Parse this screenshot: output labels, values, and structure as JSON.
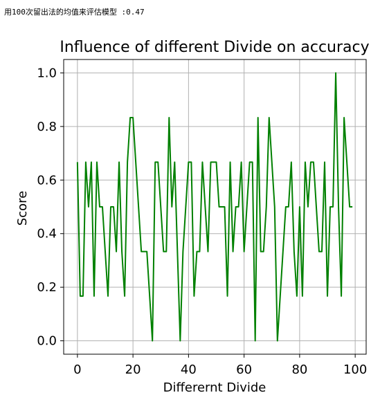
{
  "console": {
    "output_text": "用100次留出法的均值来评估模型 :0.47"
  },
  "colors": {
    "line": "#008000",
    "grid": "#b0b0b0",
    "axis": "#000000"
  },
  "chart_data": {
    "type": "line",
    "title": "Influence of different Divide on accuracy",
    "xlabel": "Differernt  Divide",
    "ylabel": "Score",
    "xlim": [
      -4.95,
      103.95
    ],
    "ylim": [
      -0.05,
      1.05
    ],
    "xticks": [
      0,
      20,
      40,
      60,
      80,
      100
    ],
    "xtick_labels": [
      "0",
      "20",
      "40",
      "60",
      "80",
      "100"
    ],
    "yticks": [
      0.0,
      0.2,
      0.4,
      0.6,
      0.8,
      1.0
    ],
    "ytick_labels": [
      "0.0",
      "0.2",
      "0.4",
      "0.6",
      "0.8",
      "1.0"
    ],
    "grid": true,
    "series": [
      {
        "color": "#008000",
        "x": [
          0,
          1,
          2,
          3,
          4,
          5,
          6,
          7,
          8,
          9,
          10,
          11,
          12,
          13,
          14,
          15,
          16,
          17,
          18,
          19,
          20,
          21,
          22,
          23,
          24,
          25,
          26,
          27,
          28,
          29,
          30,
          31,
          32,
          33,
          34,
          35,
          36,
          37,
          38,
          39,
          40,
          41,
          42,
          43,
          44,
          45,
          46,
          47,
          48,
          49,
          50,
          51,
          52,
          53,
          54,
          55,
          56,
          57,
          58,
          59,
          60,
          61,
          62,
          63,
          64,
          65,
          66,
          67,
          68,
          69,
          70,
          71,
          72,
          73,
          74,
          75,
          76,
          77,
          78,
          79,
          80,
          81,
          82,
          83,
          84,
          85,
          86,
          87,
          88,
          89,
          90,
          91,
          92,
          93,
          94,
          95,
          96,
          97,
          98,
          99
        ],
        "y": [
          0.667,
          0.167,
          0.167,
          0.667,
          0.5,
          0.667,
          0.167,
          0.667,
          0.5,
          0.5,
          0.333,
          0.167,
          0.5,
          0.5,
          0.333,
          0.667,
          0.333,
          0.167,
          0.667,
          0.833,
          0.833,
          0.667,
          0.5,
          0.333,
          0.333,
          0.333,
          0.167,
          0.0,
          0.667,
          0.667,
          0.5,
          0.333,
          0.333,
          0.833,
          0.5,
          0.667,
          0.333,
          0.0,
          0.333,
          0.5,
          0.667,
          0.667,
          0.167,
          0.333,
          0.333,
          0.667,
          0.5,
          0.333,
          0.667,
          0.667,
          0.667,
          0.5,
          0.5,
          0.5,
          0.167,
          0.667,
          0.333,
          0.5,
          0.5,
          0.667,
          0.333,
          0.5,
          0.667,
          0.667,
          0.0,
          0.833,
          0.333,
          0.333,
          0.5,
          0.833,
          0.667,
          0.5,
          0.0,
          0.167,
          0.333,
          0.5,
          0.5,
          0.667,
          0.333,
          0.167,
          0.5,
          0.167,
          0.667,
          0.5,
          0.667,
          0.667,
          0.5,
          0.333,
          0.333,
          0.667,
          0.167,
          0.5,
          0.5,
          1.0,
          0.5,
          0.167,
          0.833,
          0.667,
          0.5,
          0.5
        ]
      }
    ]
  }
}
